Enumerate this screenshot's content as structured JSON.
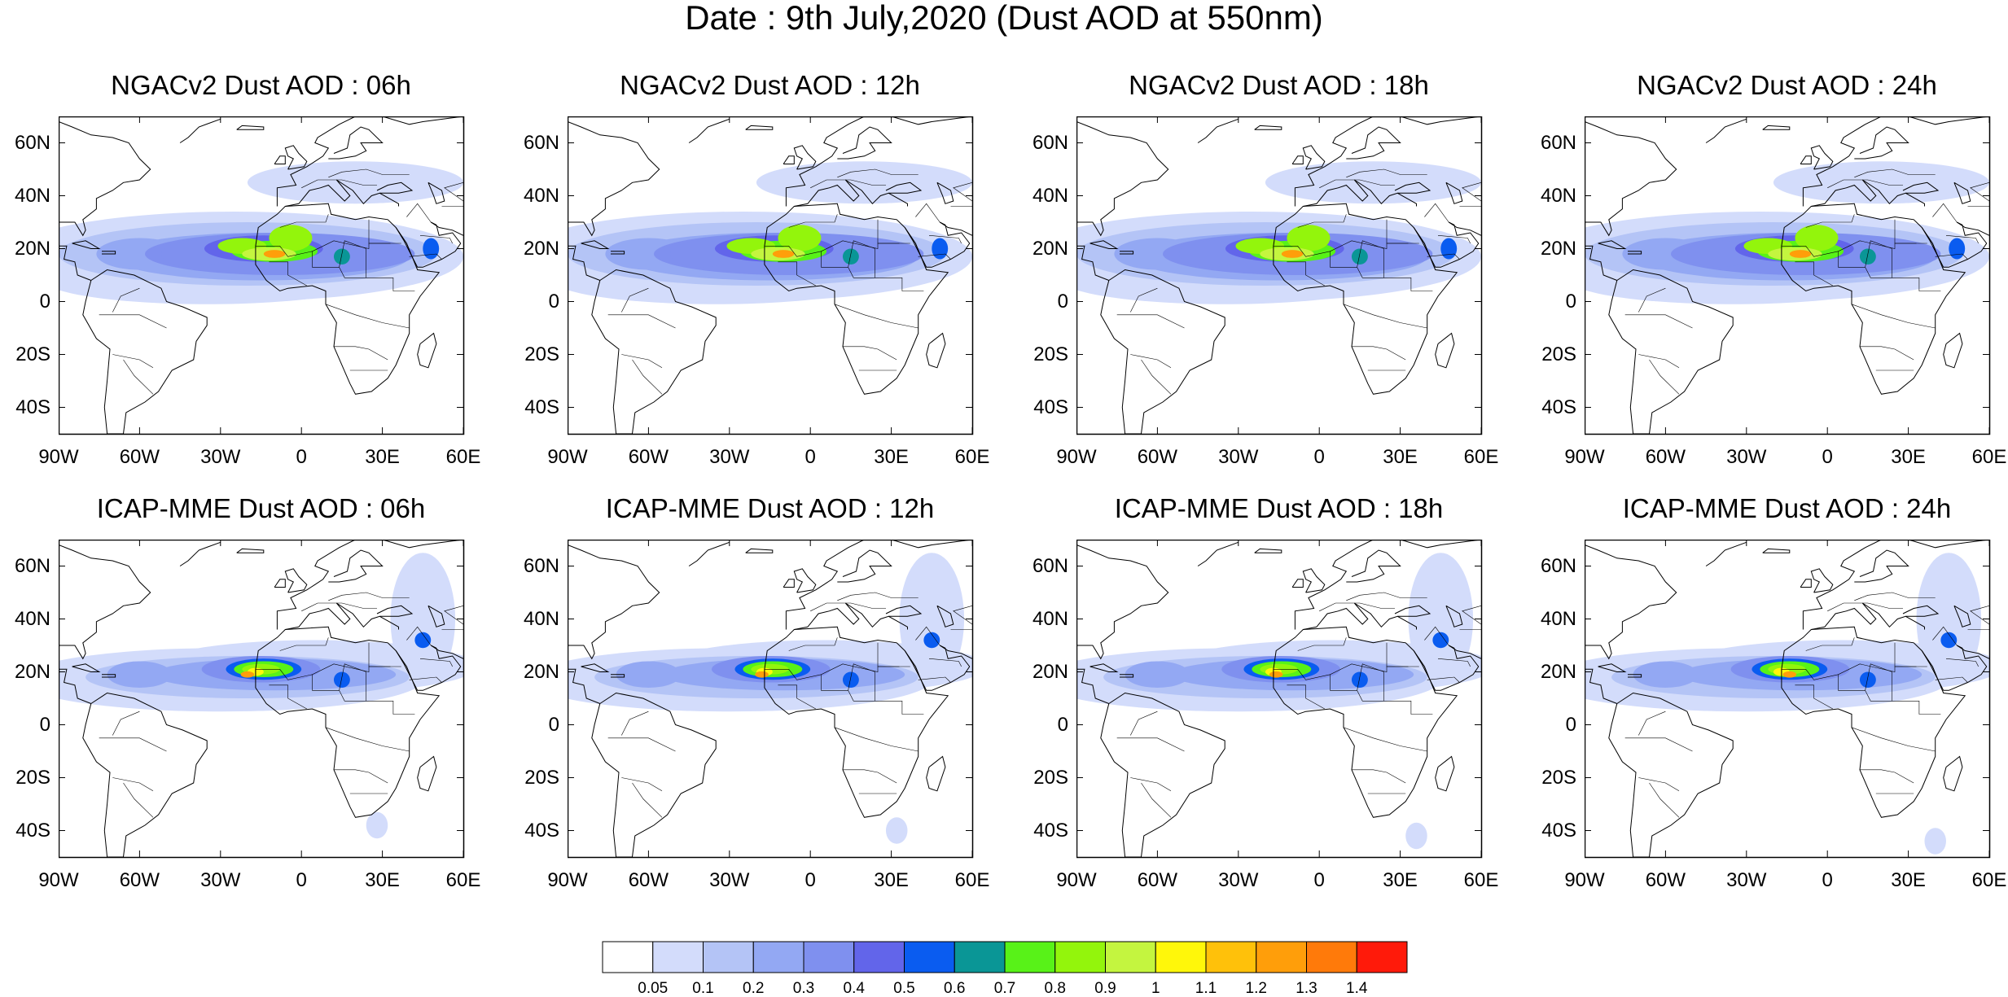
{
  "title": "Date : 9th July,2020 (Dust AOD at 550nm)",
  "panels": [
    {
      "title": "NGACv2 Dust AOD : 06h"
    },
    {
      "title": "NGACv2 Dust AOD : 12h"
    },
    {
      "title": "NGACv2 Dust AOD : 18h"
    },
    {
      "title": "NGACv2 Dust AOD : 24h"
    },
    {
      "title": "ICAP-MME Dust AOD : 06h"
    },
    {
      "title": "ICAP-MME Dust AOD : 12h"
    },
    {
      "title": "ICAP-MME Dust AOD : 18h"
    },
    {
      "title": "ICAP-MME Dust AOD : 24h"
    }
  ],
  "axes": {
    "lat_ticks": [
      "60N",
      "40N",
      "20N",
      "0",
      "20S",
      "40S"
    ],
    "lat_values": [
      60,
      40,
      20,
      0,
      -20,
      -40
    ],
    "lon_ticks": [
      "90W",
      "60W",
      "30W",
      "0",
      "30E",
      "60E"
    ],
    "lon_values": [
      -90,
      -60,
      -30,
      0,
      30,
      60
    ],
    "lon_range": [
      -90,
      60
    ],
    "lat_range": [
      -50,
      70
    ]
  },
  "colorbar": {
    "labels": [
      "0.05",
      "0.1",
      "0.2",
      "0.3",
      "0.4",
      "0.5",
      "0.6",
      "0.7",
      "0.8",
      "0.9",
      "1",
      "1.1",
      "1.2",
      "1.3",
      "1.4"
    ],
    "colors": [
      "#ffffff",
      "#d3dcfb",
      "#b4c4f6",
      "#93a8f3",
      "#7f90ef",
      "#6265ea",
      "#0a5cf0",
      "#0a9696",
      "#58f218",
      "#93f50c",
      "#c4f53f",
      "#fff70a",
      "#ffc10a",
      "#ff9e0a",
      "#ff7a0a",
      "#ff1a0a"
    ]
  }
}
